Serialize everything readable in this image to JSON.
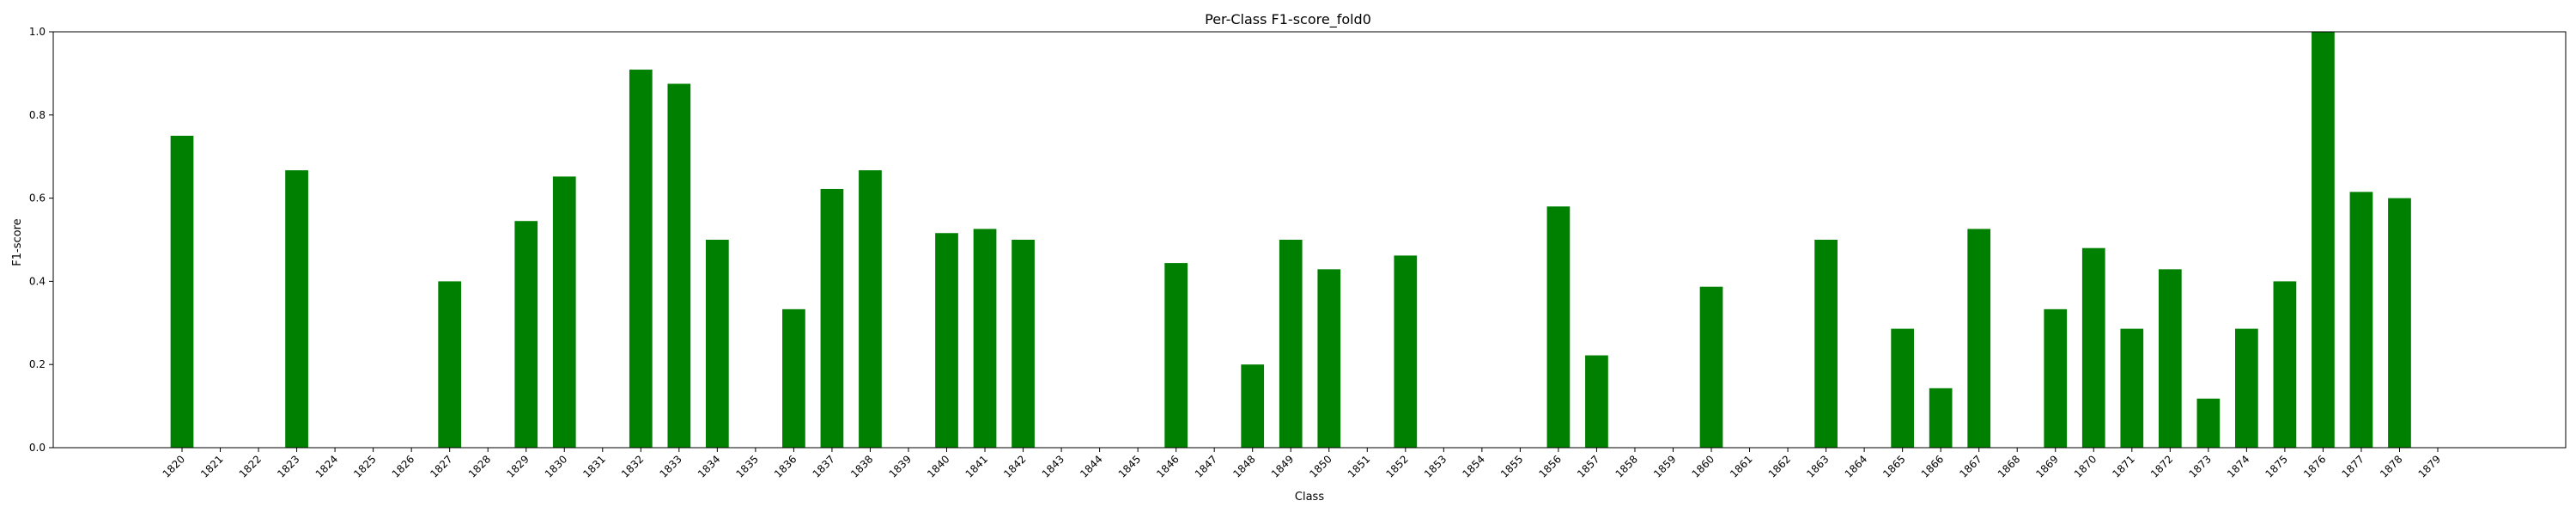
{
  "chart_data": {
    "type": "bar",
    "title": "Per-Class F1-score_fold0",
    "xlabel": "Class",
    "ylabel": "F1-score",
    "ylim": [
      0,
      1.0
    ],
    "yticks": [
      "0.0",
      "0.2",
      "0.4",
      "0.6",
      "0.8",
      "1.0"
    ],
    "bar_color": "#008000",
    "grid": false,
    "categories": [
      "1820",
      "1821",
      "1822",
      "1823",
      "1824",
      "1825",
      "1826",
      "1827",
      "1828",
      "1829",
      "1830",
      "1831",
      "1832",
      "1833",
      "1834",
      "1835",
      "1836",
      "1837",
      "1838",
      "1839",
      "1840",
      "1841",
      "1842",
      "1843",
      "1844",
      "1845",
      "1846",
      "1847",
      "1848",
      "1849",
      "1850",
      "1851",
      "1852",
      "1853",
      "1854",
      "1855",
      "1856",
      "1857",
      "1858",
      "1859",
      "1860",
      "1861",
      "1862",
      "1863",
      "1864",
      "1865",
      "1866",
      "1867",
      "1868",
      "1869",
      "1870",
      "1871",
      "1872",
      "1873",
      "1874",
      "1875",
      "1876",
      "1877",
      "1878",
      "1879"
    ],
    "values": [
      0.75,
      0,
      0,
      0.667,
      0,
      0,
      0,
      0.4,
      0,
      0.545,
      0.652,
      0,
      0.909,
      0.875,
      0.5,
      0,
      0.333,
      0.622,
      0.667,
      0,
      0.516,
      0.526,
      0.5,
      0,
      0,
      0,
      0.444,
      0,
      0.2,
      0.5,
      0.429,
      0,
      0.462,
      0,
      0,
      0,
      0.58,
      0.222,
      0,
      0,
      0.387,
      0,
      0,
      0.5,
      0,
      0.286,
      0.143,
      0.526,
      0,
      0.333,
      0.48,
      0.286,
      0.429,
      0.118,
      0.286,
      0.4,
      1.0,
      0.615,
      0.6,
      0
    ]
  }
}
